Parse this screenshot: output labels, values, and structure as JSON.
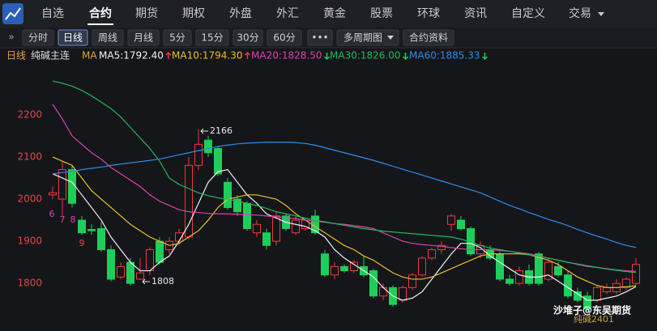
{
  "nav": {
    "tabs": [
      "自选",
      "合约",
      "期货",
      "期权",
      "外盘",
      "外汇",
      "黄金",
      "股票",
      "环球",
      "资讯",
      "自定义",
      "交易"
    ],
    "active": 1
  },
  "toolbar": {
    "buttons": [
      "分时",
      "日线",
      "周线",
      "月线",
      "5分",
      "15分",
      "30分",
      "60分",
      "•••",
      "多周期图",
      "合约资料"
    ],
    "active": 1
  },
  "chart_data": {
    "type": "candlestick",
    "period": "日线",
    "title": "纯碱主连",
    "legend_prefix": "MA",
    "up_color": "#f0383c",
    "down_color": "#1fce5a",
    "ylim": [
      1687,
      2315
    ],
    "yticks": [
      1800,
      1900,
      2000,
      2100,
      2200
    ],
    "grid": false,
    "candles": {
      "open": [
        2010,
        2000,
        2070,
        1950,
        1928,
        1930,
        1880,
        1815,
        1850,
        1810,
        1830,
        1900,
        1880,
        1900,
        1910,
        2080,
        2140,
        2120,
        2040,
        2000,
        1990,
        1920,
        1920,
        1900,
        1960,
        1920,
        1930,
        1960,
        1870,
        1820,
        1840,
        1830,
        1840,
        1830,
        1770,
        1790,
        1760,
        1790,
        1820,
        1860,
        1880,
        1940,
        1950,
        1930,
        1870,
        1880,
        1870,
        1810,
        1800,
        1830,
        1870,
        1810,
        1840,
        1820,
        1780,
        1770,
        1760,
        1780,
        1780,
        1790,
        1800
      ],
      "high": [
        2030,
        2090,
        2080,
        1960,
        1940,
        1945,
        1890,
        1850,
        1860,
        1860,
        1885,
        1910,
        1910,
        1930,
        2100,
        2166,
        2150,
        2125,
        2050,
        2010,
        1995,
        1950,
        1930,
        1970,
        1965,
        1960,
        1955,
        1975,
        1880,
        1850,
        1845,
        1855,
        1865,
        1835,
        1800,
        1795,
        1795,
        1825,
        1865,
        1885,
        1900,
        1965,
        1960,
        1935,
        1900,
        1890,
        1875,
        1820,
        1840,
        1845,
        1875,
        1860,
        1850,
        1830,
        1790,
        1780,
        1795,
        1800,
        1810,
        1815,
        1860
      ],
      "low": [
        2000,
        1960,
        1980,
        1915,
        1915,
        1875,
        1805,
        1810,
        1795,
        1808,
        1820,
        1845,
        1870,
        1890,
        1905,
        2070,
        2100,
        2055,
        1975,
        1960,
        1925,
        1910,
        1880,
        1890,
        1925,
        1915,
        1925,
        1915,
        1815,
        1810,
        1825,
        1825,
        1815,
        1765,
        1760,
        1745,
        1755,
        1785,
        1815,
        1855,
        1870,
        1925,
        1925,
        1865,
        1860,
        1855,
        1805,
        1795,
        1795,
        1795,
        1795,
        1805,
        1815,
        1765,
        1755,
        1735,
        1755,
        1775,
        1775,
        1785,
        1795
      ],
      "close": [
        2015,
        2070,
        1990,
        1920,
        1925,
        1880,
        1810,
        1840,
        1800,
        1825,
        1880,
        1850,
        1900,
        1920,
        2080,
        2130,
        2110,
        2060,
        1980,
        1970,
        1930,
        1940,
        1890,
        1960,
        1930,
        1950,
        1950,
        1920,
        1820,
        1840,
        1830,
        1850,
        1820,
        1770,
        1790,
        1750,
        1790,
        1820,
        1860,
        1880,
        1890,
        1960,
        1930,
        1870,
        1890,
        1860,
        1810,
        1800,
        1830,
        1800,
        1800,
        1850,
        1820,
        1770,
        1760,
        1740,
        1790,
        1790,
        1800,
        1810,
        1845
      ]
    },
    "series": [
      {
        "name": "MA5:1792.40",
        "color": "#f2f2f2",
        "trend": "up",
        "values": [
          2060,
          2050,
          2040,
          2010,
          1980,
          1950,
          1910,
          1880,
          1850,
          1830,
          1830,
          1850,
          1865,
          1900,
          1940,
          1990,
          2040,
          2065,
          2070,
          2040,
          2010,
          1990,
          1965,
          1955,
          1945,
          1940,
          1935,
          1925,
          1910,
          1880,
          1860,
          1845,
          1830,
          1815,
          1790,
          1770,
          1760,
          1765,
          1780,
          1810,
          1840,
          1870,
          1895,
          1895,
          1885,
          1865,
          1850,
          1835,
          1820,
          1815,
          1815,
          1820,
          1805,
          1790,
          1775,
          1760,
          1760,
          1765,
          1770,
          1780,
          1792.4
        ]
      },
      {
        "name": "MA10:1794.30",
        "color": "#e8c02c",
        "trend": "up",
        "values": [
          2100,
          2090,
          2080,
          2050,
          2020,
          2000,
          1980,
          1960,
          1940,
          1925,
          1910,
          1900,
          1890,
          1895,
          1910,
          1925,
          1950,
          1980,
          2000,
          2005,
          2010,
          2010,
          2005,
          2000,
          1985,
          1965,
          1950,
          1935,
          1920,
          1905,
          1890,
          1880,
          1865,
          1855,
          1840,
          1825,
          1815,
          1810,
          1810,
          1815,
          1825,
          1835,
          1845,
          1855,
          1865,
          1870,
          1870,
          1870,
          1870,
          1868,
          1862,
          1855,
          1845,
          1830,
          1815,
          1805,
          1795,
          1790,
          1790,
          1792,
          1794.3
        ]
      },
      {
        "name": "MA20:1828.50",
        "color": "#e040b0",
        "trend": "down",
        "values": [
          2225,
          2190,
          2150,
          2130,
          2110,
          2095,
          2075,
          2060,
          2045,
          2030,
          2010,
          1995,
          1985,
          1975,
          1970,
          1968,
          1966,
          1965,
          1965,
          1964,
          1963,
          1962,
          1960,
          1958,
          1956,
          1954,
          1950,
          1948,
          1945,
          1942,
          1940,
          1937,
          1934,
          1930,
          1920,
          1910,
          1900,
          1895,
          1892,
          1890,
          1888,
          1885,
          1882,
          1880,
          1880,
          1880,
          1878,
          1876,
          1873,
          1870,
          1865,
          1860,
          1855,
          1850,
          1845,
          1840,
          1838,
          1835,
          1832,
          1830,
          1828.5
        ]
      },
      {
        "name": "MA30:1826.00",
        "color": "#22b85a",
        "trend": "down",
        "values": [
          2280,
          2275,
          2268,
          2258,
          2245,
          2230,
          2215,
          2195,
          2170,
          2145,
          2120,
          2090,
          2050,
          2035,
          2025,
          2015,
          2008,
          2003,
          2000,
          1995,
          1990,
          1985,
          1978,
          1970,
          1965,
          1960,
          1955,
          1950,
          1946,
          1942,
          1938,
          1934,
          1930,
          1927,
          1924,
          1922,
          1920,
          1918,
          1916,
          1914,
          1912,
          1910,
          1905,
          1898,
          1890,
          1884,
          1880,
          1876,
          1872,
          1868,
          1864,
          1860,
          1855,
          1850,
          1846,
          1842,
          1838,
          1834,
          1831,
          1828,
          1826
        ]
      },
      {
        "name": "MA60:1885.33",
        "color": "#2d8ee8",
        "trend": "down",
        "values": [
          2060,
          2063,
          2066,
          2070,
          2073,
          2076,
          2080,
          2083,
          2086,
          2089,
          2092,
          2095,
          2100,
          2105,
          2110,
          2115,
          2120,
          2125,
          2128,
          2131,
          2133,
          2134,
          2135,
          2135,
          2135,
          2134,
          2132,
          2128,
          2122,
          2116,
          2110,
          2104,
          2098,
          2092,
          2085,
          2078,
          2071,
          2064,
          2057,
          2050,
          2043,
          2036,
          2029,
          2022,
          2015,
          2005,
          1995,
          1985,
          1977,
          1968,
          1960,
          1952,
          1945,
          1937,
          1928,
          1920,
          1912,
          1905,
          1897,
          1890,
          1885.33
        ]
      }
    ],
    "annotations": [
      "2166",
      "1808",
      "6",
      "7",
      "8",
      "9"
    ],
    "watermark": "沙堆子@东吴期货",
    "contract": "纯碱2401"
  }
}
